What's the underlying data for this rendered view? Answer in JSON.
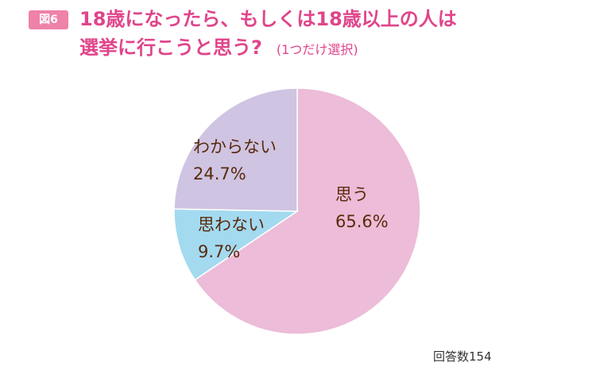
{
  "figure": {
    "badge": "図6",
    "title_line1": "18歳になったら、もしくは18歳以上の人は",
    "title_line2": "選挙に行こうと思う?",
    "title_note": "(1つだけ選択)"
  },
  "chart_data": {
    "type": "pie",
    "title": "18歳になったら、もしくは18歳以上の人は選挙に行こうと思う? (1つだけ選択)",
    "slices": [
      {
        "name": "思う",
        "value": 65.6,
        "label": "65.6%",
        "color": "#ecbcd8"
      },
      {
        "name": "思わない",
        "value": 9.7,
        "label": "9.7%",
        "color": "#a3daf0"
      },
      {
        "name": "わからない",
        "value": 24.7,
        "label": "24.7%",
        "color": "#cfc4e2"
      }
    ],
    "note": "回答数154"
  }
}
